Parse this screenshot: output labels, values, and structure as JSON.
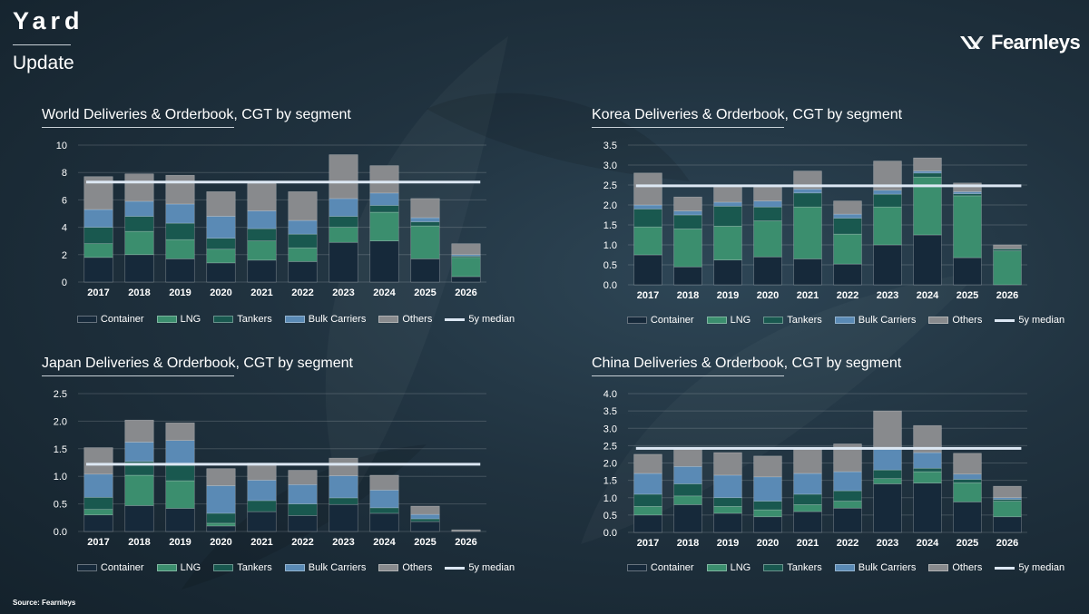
{
  "header": {
    "title": "Yard",
    "subtitle": "Update",
    "brand": "Fearnleys",
    "source": "Source: Fearnleys"
  },
  "colors": {
    "Container": "#16293a",
    "LNG": "#3b8e6e",
    "Tankers": "#19584f",
    "Bulk Carriers": "#5a8ab5",
    "Others": "#888a8d",
    "5y median": "#dce7f3"
  },
  "chart_data": [
    {
      "type": "bar",
      "title": "World Deliveries & Orderbook, CGT by segment",
      "categories": [
        "2017",
        "2018",
        "2019",
        "2020",
        "2021",
        "2022",
        "2023",
        "2024",
        "2025",
        "2026"
      ],
      "ylim": [
        0,
        10
      ],
      "yticks": [
        "0",
        "2",
        "4",
        "6",
        "8",
        "10"
      ],
      "median": 7.3,
      "series": [
        {
          "name": "Container",
          "values": [
            1.8,
            2.0,
            1.7,
            1.4,
            1.6,
            1.5,
            2.9,
            3.0,
            1.7,
            0.4
          ]
        },
        {
          "name": "LNG",
          "values": [
            1.0,
            1.7,
            1.4,
            1.0,
            1.4,
            1.0,
            1.1,
            2.1,
            2.4,
            1.4
          ]
        },
        {
          "name": "Tankers",
          "values": [
            1.2,
            1.1,
            1.2,
            0.8,
            0.9,
            1.0,
            0.8,
            0.5,
            0.3,
            0.1
          ]
        },
        {
          "name": "Bulk Carriers",
          "values": [
            1.3,
            1.1,
            1.4,
            1.6,
            1.3,
            1.0,
            1.3,
            0.9,
            0.3,
            0.1
          ]
        },
        {
          "name": "Others",
          "values": [
            2.4,
            2.0,
            2.1,
            1.8,
            2.0,
            2.1,
            3.2,
            2.0,
            1.4,
            0.8
          ]
        }
      ]
    },
    {
      "type": "bar",
      "title": "Korea Deliveries & Orderbook, CGT by segment",
      "categories": [
        "2017",
        "2018",
        "2019",
        "2020",
        "2021",
        "2022",
        "2023",
        "2024",
        "2025",
        "2026"
      ],
      "ylim": [
        0,
        3.5
      ],
      "yticks": [
        "0.0",
        "0.5",
        "1.0",
        "1.5",
        "2.0",
        "2.5",
        "3.0",
        "3.5"
      ],
      "median": 2.48,
      "series": [
        {
          "name": "Container",
          "values": [
            0.75,
            0.45,
            0.62,
            0.7,
            0.65,
            0.52,
            1.0,
            1.25,
            0.68,
            0.0
          ]
        },
        {
          "name": "LNG",
          "values": [
            0.7,
            0.95,
            0.85,
            0.9,
            1.3,
            0.75,
            0.95,
            1.45,
            1.55,
            0.85
          ]
        },
        {
          "name": "Tankers",
          "values": [
            0.45,
            0.35,
            0.5,
            0.35,
            0.35,
            0.4,
            0.32,
            0.1,
            0.05,
            0.05
          ]
        },
        {
          "name": "Bulk Carriers",
          "values": [
            0.1,
            0.1,
            0.1,
            0.15,
            0.1,
            0.1,
            0.1,
            0.05,
            0.05,
            0.0
          ]
        },
        {
          "name": "Others",
          "values": [
            0.8,
            0.35,
            0.4,
            0.35,
            0.45,
            0.33,
            0.73,
            0.33,
            0.22,
            0.1
          ]
        }
      ]
    },
    {
      "type": "bar",
      "title": "Japan Deliveries & Orderbook, CGT by segment",
      "categories": [
        "2017",
        "2018",
        "2019",
        "2020",
        "2021",
        "2022",
        "2023",
        "2024",
        "2025",
        "2026"
      ],
      "ylim": [
        0,
        2.5
      ],
      "yticks": [
        "0.0",
        "0.5",
        "1.0",
        "1.5",
        "2.0",
        "2.5"
      ],
      "median": 1.22,
      "series": [
        {
          "name": "Container",
          "values": [
            0.3,
            0.47,
            0.42,
            0.1,
            0.36,
            0.29,
            0.49,
            0.33,
            0.18,
            0.0
          ]
        },
        {
          "name": "LNG",
          "values": [
            0.1,
            0.55,
            0.5,
            0.05,
            0.0,
            0.0,
            0.0,
            0.0,
            0.0,
            0.0
          ]
        },
        {
          "name": "Tankers",
          "values": [
            0.22,
            0.25,
            0.28,
            0.18,
            0.2,
            0.21,
            0.12,
            0.1,
            0.05,
            0.0
          ]
        },
        {
          "name": "Bulk Carriers",
          "values": [
            0.42,
            0.35,
            0.45,
            0.5,
            0.37,
            0.35,
            0.4,
            0.32,
            0.08,
            0.0
          ]
        },
        {
          "name": "Others",
          "values": [
            0.48,
            0.4,
            0.32,
            0.31,
            0.31,
            0.26,
            0.32,
            0.27,
            0.15,
            0.03
          ]
        }
      ]
    },
    {
      "type": "bar",
      "title": "China Deliveries & Orderbook, CGT by segment",
      "categories": [
        "2017",
        "2018",
        "2019",
        "2020",
        "2021",
        "2022",
        "2023",
        "2024",
        "2025",
        "2026"
      ],
      "ylim": [
        0,
        4.0
      ],
      "yticks": [
        "0.0",
        "0.5",
        "1.0",
        "1.5",
        "2.0",
        "2.5",
        "3.0",
        "3.5",
        "4.0"
      ],
      "median": 2.42,
      "series": [
        {
          "name": "Container",
          "values": [
            0.5,
            0.8,
            0.55,
            0.45,
            0.6,
            0.7,
            1.4,
            1.42,
            0.88,
            0.45
          ]
        },
        {
          "name": "LNG",
          "values": [
            0.25,
            0.25,
            0.2,
            0.2,
            0.2,
            0.2,
            0.15,
            0.33,
            0.55,
            0.45
          ]
        },
        {
          "name": "Tankers",
          "values": [
            0.35,
            0.35,
            0.25,
            0.25,
            0.3,
            0.3,
            0.25,
            0.1,
            0.1,
            0.05
          ]
        },
        {
          "name": "Bulk Carriers",
          "values": [
            0.6,
            0.5,
            0.65,
            0.7,
            0.6,
            0.55,
            0.65,
            0.45,
            0.15,
            0.05
          ]
        },
        {
          "name": "Others",
          "values": [
            0.55,
            0.5,
            0.65,
            0.6,
            0.72,
            0.8,
            1.05,
            0.78,
            0.6,
            0.33
          ]
        }
      ]
    }
  ]
}
